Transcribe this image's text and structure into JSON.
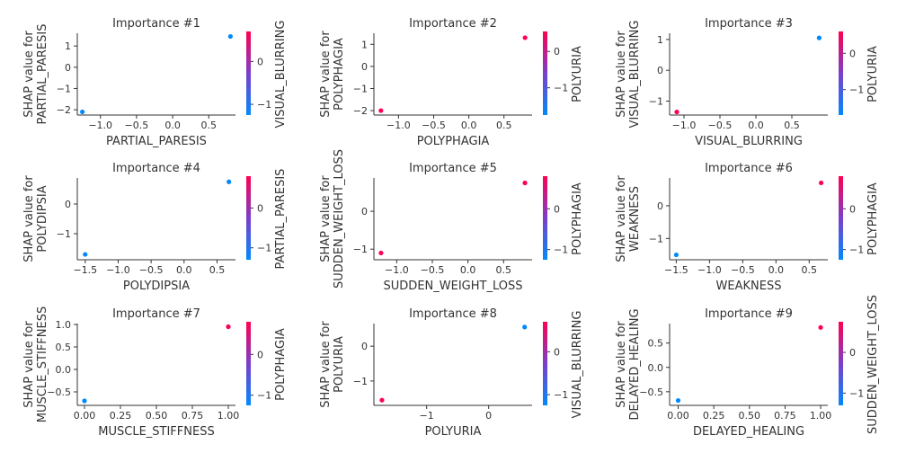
{
  "colorbar_gradient": [
    "#008afb",
    "#7c3ec9",
    "#ff0052"
  ],
  "chart_data": [
    {
      "type": "scatter",
      "title": "Importance #1",
      "xlabel": "PARTIAL_PARESIS",
      "ylabel": [
        "SHAP value for",
        "PARTIAL_PARESIS"
      ],
      "xlim": [
        -1.32,
        0.87
      ],
      "ylim": [
        -2.25,
        1.6
      ],
      "xticks": [
        -1.0,
        -0.5,
        0.0,
        0.5
      ],
      "xtick_labels": [
        "−1.0",
        "−0.5",
        "0.0",
        "0.5"
      ],
      "yticks": [
        -2,
        -1,
        0,
        1
      ],
      "ytick_labels": [
        "−2",
        "−1",
        "0",
        "1"
      ],
      "colorbar": {
        "label": "VISUAL_BLURRING",
        "ticks": [
          0,
          -1
        ],
        "tick_labels": [
          "0",
          "−1"
        ],
        "range": [
          -1.25,
          0.7
        ]
      },
      "points": [
        {
          "x": -1.25,
          "y": -2.1,
          "color": "#008afb"
        },
        {
          "x": 0.8,
          "y": 1.45,
          "color": "#008afb"
        }
      ]
    },
    {
      "type": "scatter",
      "title": "Importance #2",
      "xlabel": "POLYPHAGIA",
      "ylabel": [
        "SHAP value for",
        "POLYPHAGIA"
      ],
      "xlim": [
        -1.35,
        0.9
      ],
      "ylim": [
        -2.2,
        1.5
      ],
      "xticks": [
        -1.0,
        -0.5,
        0.0,
        0.5
      ],
      "xtick_labels": [
        "−1.0",
        "−0.5",
        "0.0",
        "0.5"
      ],
      "yticks": [
        -2,
        -1,
        0,
        1
      ],
      "ytick_labels": [
        "−2",
        "−1",
        "0",
        "1"
      ],
      "colorbar": {
        "label": "POLYURIA",
        "ticks": [
          0,
          -1
        ],
        "tick_labels": [
          "0",
          "−1"
        ],
        "range": [
          -1.75,
          0.55
        ]
      },
      "points": [
        {
          "x": -1.25,
          "y": -2.0,
          "color": "#ff0052"
        },
        {
          "x": 0.8,
          "y": 1.3,
          "color": "#ff0052"
        }
      ]
    },
    {
      "type": "scatter",
      "title": "Importance #3",
      "xlabel": "VISUAL_BLURRING",
      "ylabel": [
        "SHAP value for",
        "VISUAL_BLURRING"
      ],
      "xlim": [
        -1.2,
        1.0
      ],
      "ylim": [
        -1.45,
        1.2
      ],
      "xticks": [
        -1.0,
        -0.5,
        0.0,
        0.5
      ],
      "xtick_labels": [
        "−1.0",
        "−0.5",
        "0.0",
        "0.5"
      ],
      "yticks": [
        -1,
        0,
        1
      ],
      "ytick_labels": [
        "−1",
        "0",
        "1"
      ],
      "colorbar": {
        "label": "POLYURIA",
        "ticks": [
          0,
          -1
        ],
        "tick_labels": [
          "0",
          "−1"
        ],
        "range": [
          -1.7,
          0.6
        ]
      },
      "points": [
        {
          "x": -1.1,
          "y": -1.35,
          "color": "#ff0052"
        },
        {
          "x": 0.88,
          "y": 1.05,
          "color": "#008afb"
        }
      ]
    },
    {
      "type": "scatter",
      "title": "Importance #4",
      "xlabel": "POLYDIPSIA",
      "ylabel": [
        "SHAP value for",
        "POLYDIPSIA"
      ],
      "xlim": [
        -1.62,
        0.78
      ],
      "ylim": [
        -1.88,
        0.88
      ],
      "xticks": [
        -1.5,
        -1.0,
        -0.5,
        0.0,
        0.5
      ],
      "xtick_labels": [
        "−1.5",
        "−1.0",
        "−0.5",
        "0.0",
        "0.5"
      ],
      "yticks": [
        -1,
        0
      ],
      "ytick_labels": [
        "−1",
        "0"
      ],
      "colorbar": {
        "label": "PARTIAL_PARESIS",
        "ticks": [
          0,
          -1
        ],
        "tick_labels": [
          "0",
          "−1"
        ],
        "range": [
          -1.3,
          0.8
        ]
      },
      "points": [
        {
          "x": -1.5,
          "y": -1.7,
          "color": "#008afb"
        },
        {
          "x": 0.68,
          "y": 0.75,
          "color": "#008afb"
        }
      ]
    },
    {
      "type": "scatter",
      "title": "Importance #5",
      "xlabel": "SUDDEN_WEIGHT_LOSS",
      "ylabel": [
        "SHAP value for",
        "SUDDEN_WEIGHT_LOSS"
      ],
      "xlim": [
        -1.32,
        0.9
      ],
      "ylim": [
        -1.28,
        0.88
      ],
      "xticks": [
        -1.0,
        -0.5,
        0.0,
        0.5
      ],
      "xtick_labels": [
        "−1.0",
        "−0.5",
        "0.0",
        "0.5"
      ],
      "yticks": [
        -1,
        0
      ],
      "ytick_labels": [
        "−1",
        "0"
      ],
      "colorbar": {
        "label": "POLYPHAGIA",
        "ticks": [
          0,
          -1
        ],
        "tick_labels": [
          "0",
          "−1"
        ],
        "range": [
          -1.25,
          0.8
        ]
      },
      "points": [
        {
          "x": -1.22,
          "y": -1.1,
          "color": "#ff0052"
        },
        {
          "x": 0.8,
          "y": 0.75,
          "color": "#ff0052"
        }
      ]
    },
    {
      "type": "scatter",
      "title": "Importance #6",
      "xlabel": "WEAKNESS",
      "ylabel": [
        "SHAP value for",
        "WEAKNESS"
      ],
      "xlim": [
        -1.6,
        0.78
      ],
      "ylim": [
        -1.65,
        0.85
      ],
      "xticks": [
        -1.5,
        -1.0,
        -0.5,
        0.0,
        0.5
      ],
      "xtick_labels": [
        "−1.5",
        "−1.0",
        "−0.5",
        "0.0",
        "0.5"
      ],
      "yticks": [
        -1,
        0
      ],
      "ytick_labels": [
        "−1",
        "0"
      ],
      "colorbar": {
        "label": "POLYPHAGIA",
        "ticks": [
          0,
          -1
        ],
        "tick_labels": [
          "0",
          "−1"
        ],
        "range": [
          -1.25,
          0.8
        ]
      },
      "points": [
        {
          "x": -1.5,
          "y": -1.5,
          "color": "#008afb"
        },
        {
          "x": 0.68,
          "y": 0.7,
          "color": "#ff0052"
        }
      ]
    },
    {
      "type": "scatter",
      "title": "Importance #7",
      "xlabel": "MUSCLE_STIFFNESS",
      "ylabel": [
        "SHAP value for",
        "MUSCLE_STIFFNESS"
      ],
      "xlim": [
        -0.05,
        1.05
      ],
      "ylim": [
        -0.8,
        1.02
      ],
      "xticks": [
        0.0,
        0.25,
        0.5,
        0.75,
        1.0
      ],
      "xtick_labels": [
        "0.00",
        "0.25",
        "0.50",
        "0.75",
        "1.00"
      ],
      "yticks": [
        -0.5,
        0.0,
        0.5,
        1.0
      ],
      "ytick_labels": [
        "−0.5",
        "0.0",
        "0.5",
        "1.0"
      ],
      "colorbar": {
        "label": "POLYPHAGIA",
        "ticks": [
          0,
          -1
        ],
        "tick_labels": [
          "0",
          "−1"
        ],
        "range": [
          -1.25,
          0.8
        ]
      },
      "points": [
        {
          "x": 0.0,
          "y": -0.7,
          "color": "#008afb"
        },
        {
          "x": 1.0,
          "y": 0.95,
          "color": "#ff0052"
        }
      ]
    },
    {
      "type": "scatter",
      "title": "Importance #8",
      "xlabel": "POLYURIA",
      "ylabel": [
        "SHAP value for",
        "POLYURIA"
      ],
      "xlim": [
        -1.85,
        0.7
      ],
      "ylim": [
        -1.7,
        0.65
      ],
      "xticks": [
        -1,
        0
      ],
      "xtick_labels": [
        "−1",
        "0"
      ],
      "yticks": [
        -1,
        0
      ],
      "ytick_labels": [
        "−1",
        "0"
      ],
      "colorbar": {
        "label": "VISUAL_BLURRING",
        "ticks": [
          0,
          -1
        ],
        "tick_labels": [
          "0",
          "−1"
        ],
        "range": [
          -1.25,
          0.7
        ]
      },
      "points": [
        {
          "x": -1.72,
          "y": -1.55,
          "color": "#ff0052"
        },
        {
          "x": 0.58,
          "y": 0.55,
          "color": "#008afb"
        }
      ]
    },
    {
      "type": "scatter",
      "title": "Importance #9",
      "xlabel": "DELAYED_HEALING",
      "ylabel": [
        "SHAP value for",
        "DELAYED_HEALING"
      ],
      "xlim": [
        -0.06,
        1.05
      ],
      "ylim": [
        -0.78,
        0.9
      ],
      "xticks": [
        0.0,
        0.25,
        0.5,
        0.75,
        1.0
      ],
      "xtick_labels": [
        "0.00",
        "0.25",
        "0.50",
        "0.75",
        "1.00"
      ],
      "yticks": [
        -0.5,
        0.0,
        0.5
      ],
      "ytick_labels": [
        "−0.5",
        "0.0",
        "0.5"
      ],
      "colorbar": {
        "label": "SUDDEN_WEIGHT_LOSS",
        "ticks": [
          0,
          -1
        ],
        "tick_labels": [
          "0",
          "−1"
        ],
        "range": [
          -1.3,
          0.75
        ]
      },
      "points": [
        {
          "x": 0.0,
          "y": -0.68,
          "color": "#008afb"
        },
        {
          "x": 1.0,
          "y": 0.82,
          "color": "#ff0052"
        }
      ]
    }
  ]
}
